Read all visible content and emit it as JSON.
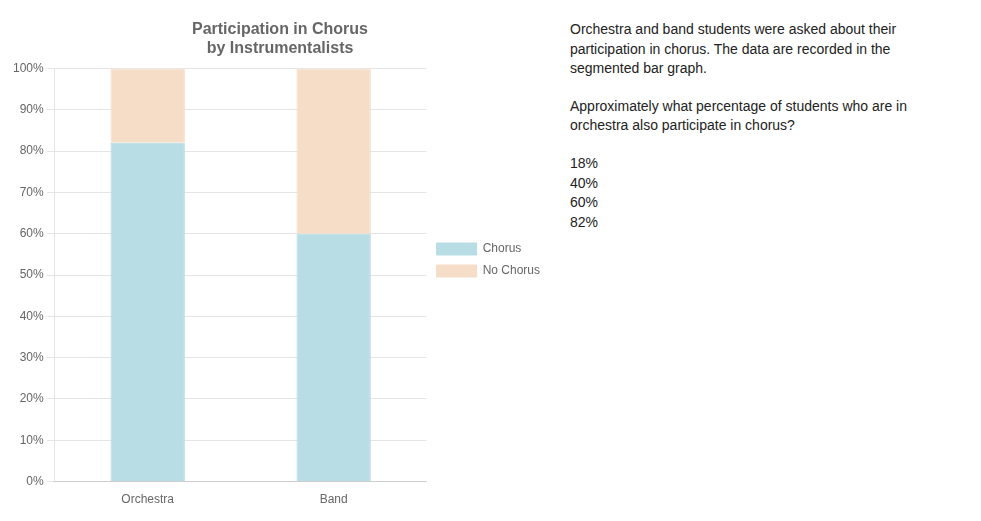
{
  "chart_data": {
    "type": "bar",
    "title": [
      "Participation in Chorus",
      "by Instrumentalists"
    ],
    "categories": [
      "Orchestra",
      "Band"
    ],
    "series": [
      {
        "name": "Chorus",
        "color": "#b8dde4",
        "values": [
          82,
          60
        ]
      },
      {
        "name": "No Chorus",
        "color": "#f5ddc8",
        "values": [
          18,
          40
        ]
      }
    ],
    "stacked": true,
    "ylim": [
      0,
      100
    ],
    "yticks": [
      {
        "value": 0,
        "label": "0%"
      },
      {
        "value": 10,
        "label": "10%"
      },
      {
        "value": 20,
        "label": "20%"
      },
      {
        "value": 30,
        "label": "30%"
      },
      {
        "value": 40,
        "label": "40%"
      },
      {
        "value": 50,
        "label": "50%"
      },
      {
        "value": 60,
        "label": "60%"
      },
      {
        "value": 70,
        "label": "70%"
      },
      {
        "value": 80,
        "label": "80%"
      },
      {
        "value": 90,
        "label": "90%"
      },
      {
        "value": 100,
        "label": "100%"
      }
    ],
    "grid": true,
    "legend": "right",
    "annotations": [
      [
        "Orchestra and band students were asked about their",
        "participation in chorus. The data are recorded in the",
        "segmented bar graph."
      ],
      [
        "Approximately what percentage of students who are in",
        "orchestra also participate in chorus?"
      ],
      [
        "18%",
        "40%",
        "60%",
        "82%"
      ]
    ]
  }
}
